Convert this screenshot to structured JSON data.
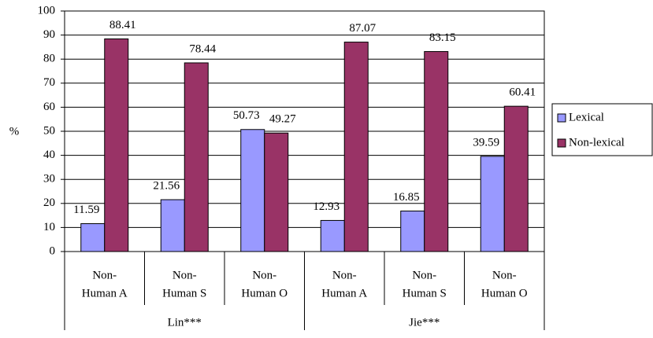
{
  "chart_data": {
    "type": "bar",
    "y_label": "%",
    "categories": [
      [
        "Non-",
        "Human A"
      ],
      [
        "Non-",
        "Human S"
      ],
      [
        "Non-",
        "Human O"
      ],
      [
        "Non-",
        "Human A"
      ],
      [
        "Non-",
        "Human S"
      ],
      [
        "Non-",
        "Human O"
      ]
    ],
    "category_groups": [
      "Lin***",
      "Jie***"
    ],
    "series": [
      {
        "name": "Lexical",
        "color": "#9999ff",
        "values": [
          11.59,
          21.56,
          50.73,
          12.93,
          16.85,
          39.59
        ]
      },
      {
        "name": "Non-lexical",
        "color": "#993366",
        "values": [
          88.41,
          78.44,
          49.27,
          87.07,
          83.15,
          60.41
        ]
      }
    ],
    "ylim": [
      0,
      100
    ],
    "yticks": [
      0,
      10,
      20,
      30,
      40,
      50,
      60,
      70,
      80,
      90,
      100
    ],
    "grid": true,
    "legend": "right"
  }
}
